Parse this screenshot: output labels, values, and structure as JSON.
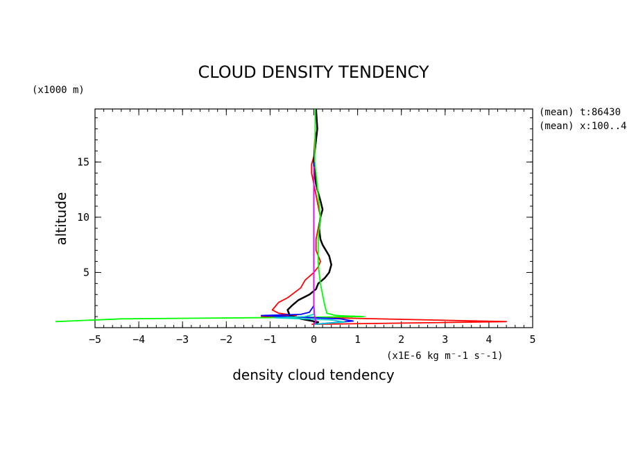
{
  "chart_data": {
    "type": "line",
    "title": "CLOUD DENSITY TENDENCY",
    "xlabel": "density cloud tendency",
    "xunit": "(x1E-6 kg m⁻-1 s⁻-1)",
    "ylabel": "altitude",
    "yunit": "(x1000 m)",
    "annotations": [
      "(mean) t:86430",
      "(mean) x:100..4"
    ],
    "xlim": [
      -5,
      5
    ],
    "ylim": [
      0,
      19.8
    ],
    "xticks": [
      -5,
      -4,
      -3,
      -2,
      -1,
      0,
      1,
      2,
      3,
      4,
      5
    ],
    "yticks": [
      5,
      10,
      15
    ],
    "grid": false,
    "series": [
      {
        "color": "#ff0000",
        "points": [
          [
            -0.05,
            0.3
          ],
          [
            4.4,
            0.55
          ],
          [
            0.3,
            0.9
          ],
          [
            -1.2,
            1.0
          ],
          [
            -0.4,
            1.1
          ],
          [
            -0.8,
            1.3
          ],
          [
            -0.95,
            1.6
          ],
          [
            -0.8,
            2.3
          ],
          [
            -0.6,
            2.7
          ],
          [
            -0.5,
            3.0
          ],
          [
            -0.3,
            3.6
          ],
          [
            -0.2,
            4.3
          ],
          [
            0,
            5.0
          ],
          [
            0.1,
            5.5
          ],
          [
            0.15,
            6.0
          ],
          [
            0.05,
            7.0
          ],
          [
            0.05,
            8.0
          ],
          [
            0.1,
            9.0
          ],
          [
            0.15,
            10.0
          ],
          [
            0.1,
            11.0
          ],
          [
            0.05,
            12.0
          ],
          [
            0,
            13.0
          ],
          [
            -0.05,
            14.0
          ],
          [
            -0.05,
            14.8
          ],
          [
            0,
            15.5
          ],
          [
            0.02,
            17.0
          ],
          [
            0.08,
            18.0
          ],
          [
            0.05,
            19.8
          ]
        ]
      },
      {
        "color": "#000000",
        "points": [
          [
            0,
            0.3
          ],
          [
            0.1,
            0.5
          ],
          [
            -0.3,
            0.8
          ],
          [
            -0.55,
            1.1
          ],
          [
            -0.6,
            1.6
          ],
          [
            -0.5,
            2.0
          ],
          [
            -0.35,
            2.5
          ],
          [
            -0.1,
            3.0
          ],
          [
            0.05,
            3.5
          ],
          [
            0.1,
            4.0
          ],
          [
            0.25,
            4.5
          ],
          [
            0.35,
            5.0
          ],
          [
            0.4,
            5.7
          ],
          [
            0.35,
            6.5
          ],
          [
            0.2,
            7.5
          ],
          [
            0.15,
            8.0
          ],
          [
            0.12,
            9.0
          ],
          [
            0.15,
            10.0
          ],
          [
            0.2,
            10.7
          ],
          [
            0.15,
            11.5
          ],
          [
            0.1,
            12.2
          ],
          [
            0.05,
            13.0
          ],
          [
            0.02,
            14.0
          ],
          [
            0,
            15.0
          ],
          [
            0.02,
            16.0
          ],
          [
            0.05,
            17.0
          ],
          [
            0.08,
            18.0
          ],
          [
            0.05,
            19.8
          ]
        ]
      },
      {
        "color": "#00ff00",
        "points": [
          [
            -5.9,
            0.55
          ],
          [
            -4.4,
            0.8
          ],
          [
            -1.3,
            0.9
          ],
          [
            1.15,
            1.0
          ],
          [
            0.5,
            1.1
          ],
          [
            0.3,
            1.3
          ],
          [
            0.25,
            2.0
          ],
          [
            0.2,
            3.0
          ],
          [
            0.15,
            4.0
          ],
          [
            0.12,
            5.0
          ],
          [
            0.1,
            6.0
          ],
          [
            0.1,
            7.0
          ],
          [
            0.1,
            8.0
          ],
          [
            0.12,
            9.0
          ],
          [
            0.15,
            10.0
          ],
          [
            0.1,
            12.0
          ],
          [
            0.05,
            14.0
          ],
          [
            0.02,
            15.0
          ],
          [
            0.02,
            16.0
          ],
          [
            0.03,
            18.0
          ],
          [
            0.03,
            19.8
          ]
        ]
      },
      {
        "color": "#0000ff",
        "points": [
          [
            0,
            0.3
          ],
          [
            0.9,
            0.6
          ],
          [
            0.6,
            0.8
          ],
          [
            -1.2,
            1.1
          ],
          [
            -0.3,
            1.2
          ],
          [
            -0.1,
            1.4
          ],
          [
            0,
            2.0
          ],
          [
            0,
            5.0
          ],
          [
            0,
            10.0
          ],
          [
            0,
            15.0
          ]
        ]
      },
      {
        "color": "#00cccc",
        "points": [
          [
            0,
            0.3
          ],
          [
            0.7,
            0.5
          ],
          [
            0.4,
            0.7
          ],
          [
            -0.9,
            0.9
          ],
          [
            -0.2,
            1.0
          ],
          [
            0,
            1.2
          ],
          [
            0,
            5.0
          ],
          [
            0,
            10.0
          ],
          [
            0,
            14.5
          ]
        ]
      },
      {
        "color": "#ff00ff",
        "points": [
          [
            0,
            0.3
          ],
          [
            0.05,
            0.6
          ],
          [
            0.02,
            1.0
          ],
          [
            0,
            2.0
          ],
          [
            0,
            5.0
          ],
          [
            0,
            10.0
          ],
          [
            0,
            14.6
          ]
        ]
      }
    ]
  }
}
